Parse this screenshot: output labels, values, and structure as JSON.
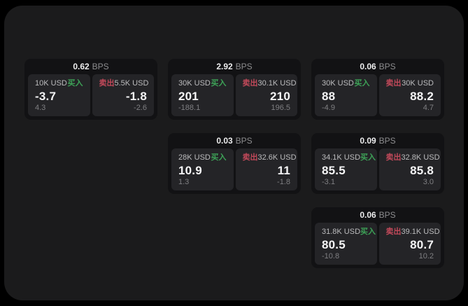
{
  "labels": {
    "bps": "BPS",
    "buy": "买入",
    "sell": "卖出"
  },
  "colors": {
    "outer_background": "#000000",
    "page_background": "#1b1b1c",
    "card_background": "#121214",
    "tile_background": "#242427",
    "buy_green": "#3da257",
    "sell_red": "#c2495a",
    "value_white": "#f5f5f6",
    "muted_gray": "#7f7f82"
  },
  "cards": [
    {
      "bps": "0.62",
      "buy": {
        "amount": "10K USD",
        "value": "-3.7",
        "sub": "4.3"
      },
      "sell": {
        "amount": "5.5K USD",
        "value": "-1.8",
        "sub": "-2.6"
      }
    },
    {
      "bps": "2.92",
      "buy": {
        "amount": "30K USD",
        "value": "201",
        "sub": "-188.1"
      },
      "sell": {
        "amount": "30.1K USD",
        "value": "210",
        "sub": "196.5"
      }
    },
    {
      "bps": "0.06",
      "buy": {
        "amount": "30K USD",
        "value": "88",
        "sub": "-4.9"
      },
      "sell": {
        "amount": "30K USD",
        "value": "88.2",
        "sub": "4.7"
      }
    },
    {
      "bps": "0.03",
      "buy": {
        "amount": "28K USD",
        "value": "10.9",
        "sub": "1.3"
      },
      "sell": {
        "amount": "32.6K USD",
        "value": "11",
        "sub": "-1.8"
      }
    },
    {
      "bps": "0.09",
      "buy": {
        "amount": "34.1K USD",
        "value": "85.5",
        "sub": "-3.1"
      },
      "sell": {
        "amount": "32.8K USD",
        "value": "85.8",
        "sub": "3.0"
      }
    },
    {
      "bps": "0.06",
      "buy": {
        "amount": "31.8K USD",
        "value": "80.5",
        "sub": "-10.8"
      },
      "sell": {
        "amount": "39.1K USD",
        "value": "80.7",
        "sub": "10.2"
      }
    }
  ]
}
